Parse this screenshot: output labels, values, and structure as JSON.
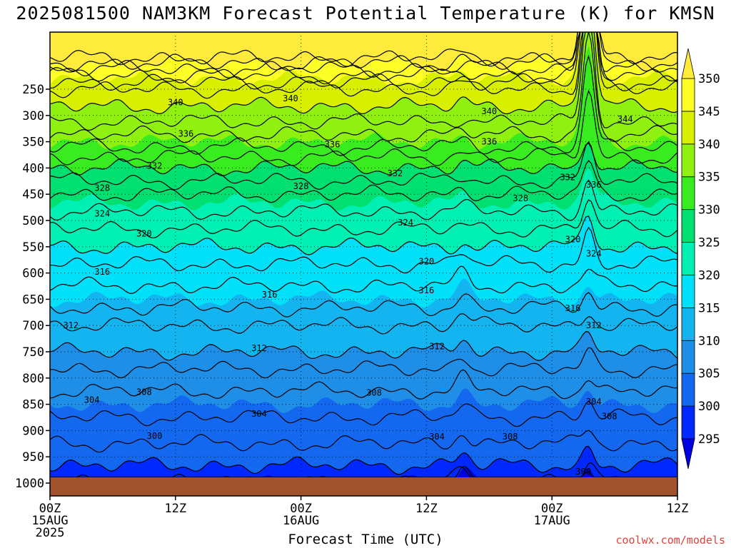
{
  "chart_data": {
    "type": "heatmap",
    "title": "2025081500 NAM3KM Forecast Potential Temperature (K) for KMSN",
    "xlabel": "Forecast Time (UTC)",
    "ylabel": "",
    "credit": "coolwx.com/models",
    "x_ticks": [
      {
        "hour": 0,
        "labels": [
          "00Z",
          "15AUG",
          "2025"
        ]
      },
      {
        "hour": 12,
        "labels": [
          "12Z"
        ]
      },
      {
        "hour": 24,
        "labels": [
          "00Z",
          "16AUG"
        ]
      },
      {
        "hour": 36,
        "labels": [
          "12Z"
        ]
      },
      {
        "hour": 48,
        "labels": [
          "00Z",
          "17AUG"
        ]
      },
      {
        "hour": 60,
        "labels": [
          "12Z"
        ]
      }
    ],
    "xlim": [
      0,
      60
    ],
    "y_axis": "pressure (hPa), inverted",
    "ylim": [
      1020,
      200
    ],
    "y_ticks": [
      250,
      300,
      350,
      400,
      450,
      500,
      550,
      600,
      650,
      700,
      750,
      800,
      850,
      900,
      950,
      1000
    ],
    "colorbar": {
      "levels": [
        295,
        300,
        305,
        310,
        315,
        320,
        325,
        330,
        335,
        340,
        345,
        350
      ],
      "colors": [
        "#0000e0",
        "#0028ff",
        "#1468f0",
        "#1e8ee6",
        "#14b4f0",
        "#00e0f8",
        "#00f0b4",
        "#00e070",
        "#38ec20",
        "#90f010",
        "#d8f000",
        "#ffff28",
        "#ffeb3b"
      ],
      "extend": "both"
    },
    "ground_color": "#a0522d",
    "profile": {
      "pressure": [
        1000,
        950,
        900,
        850,
        800,
        750,
        700,
        650,
        600,
        550,
        500,
        450,
        400,
        350,
        300,
        250,
        200
      ],
      "theta": [
        298,
        301,
        303,
        305,
        307,
        310,
        312,
        315,
        317,
        320,
        323,
        326,
        330,
        335,
        339,
        342,
        350
      ]
    },
    "contour_labels": [
      {
        "value": "340",
        "hour": 12,
        "p": 275
      },
      {
        "value": "340",
        "hour": 23,
        "p": 268
      },
      {
        "value": "340",
        "hour": 42,
        "p": 292
      },
      {
        "value": "344",
        "hour": 55,
        "p": 307
      },
      {
        "value": "336",
        "hour": 13,
        "p": 335
      },
      {
        "value": "336",
        "hour": 27,
        "p": 355
      },
      {
        "value": "336",
        "hour": 42,
        "p": 350
      },
      {
        "value": "336",
        "hour": 52,
        "p": 432
      },
      {
        "value": "332",
        "hour": 10,
        "p": 396
      },
      {
        "value": "332",
        "hour": 33,
        "p": 410
      },
      {
        "value": "332",
        "hour": 49.5,
        "p": 418
      },
      {
        "value": "328",
        "hour": 5,
        "p": 438
      },
      {
        "value": "328",
        "hour": 24,
        "p": 435
      },
      {
        "value": "328",
        "hour": 45,
        "p": 458
      },
      {
        "value": "324",
        "hour": 5,
        "p": 487
      },
      {
        "value": "324",
        "hour": 34,
        "p": 504
      },
      {
        "value": "324",
        "hour": 52,
        "p": 563
      },
      {
        "value": "320",
        "hour": 9,
        "p": 525
      },
      {
        "value": "320",
        "hour": 36,
        "p": 578
      },
      {
        "value": "320",
        "hour": 50,
        "p": 536
      },
      {
        "value": "316",
        "hour": 5,
        "p": 598
      },
      {
        "value": "316",
        "hour": 21,
        "p": 641
      },
      {
        "value": "316",
        "hour": 36,
        "p": 633
      },
      {
        "value": "316",
        "hour": 50,
        "p": 667
      },
      {
        "value": "312",
        "hour": 2,
        "p": 700
      },
      {
        "value": "312",
        "hour": 20,
        "p": 743
      },
      {
        "value": "312",
        "hour": 37,
        "p": 740
      },
      {
        "value": "312",
        "hour": 52,
        "p": 700
      },
      {
        "value": "308",
        "hour": 9,
        "p": 827
      },
      {
        "value": "308",
        "hour": 31,
        "p": 828
      },
      {
        "value": "308",
        "hour": 44,
        "p": 912
      },
      {
        "value": "308",
        "hour": 53.5,
        "p": 873
      },
      {
        "value": "304",
        "hour": 4,
        "p": 842
      },
      {
        "value": "304",
        "hour": 20,
        "p": 868
      },
      {
        "value": "304",
        "hour": 37,
        "p": 912
      },
      {
        "value": "304",
        "hour": 52,
        "p": 845
      },
      {
        "value": "300",
        "hour": 10,
        "p": 910
      },
      {
        "value": "300",
        "hour": 51,
        "p": 978
      }
    ]
  }
}
